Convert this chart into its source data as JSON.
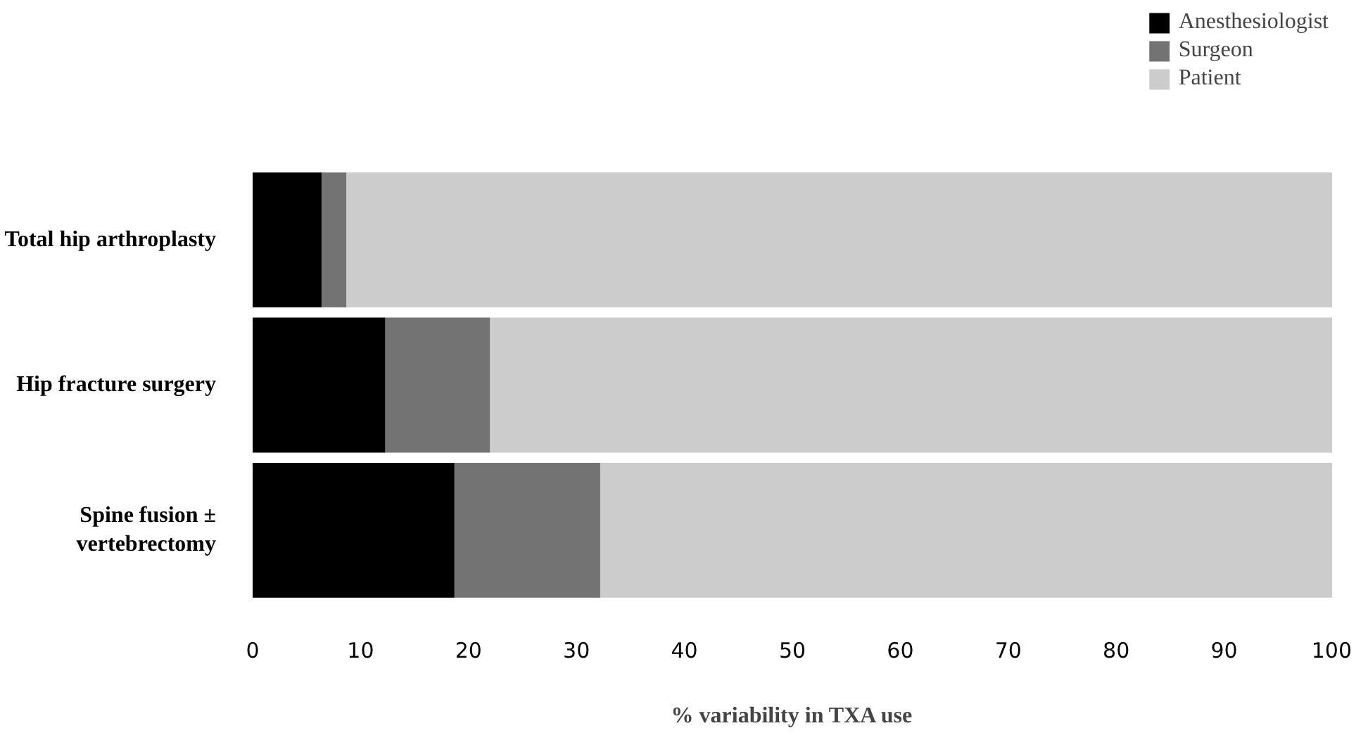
{
  "chart_data": {
    "type": "bar",
    "orientation": "horizontal",
    "stacked": true,
    "xlabel": "% variability in TXA use",
    "categories": [
      "Total hip arthroplasty",
      "Hip fracture surgery",
      "Spine fusion ±\nvertebrectomy"
    ],
    "series": [
      {
        "name": "Anesthesiologist",
        "color": "#000000",
        "values": [
          6.4,
          12.3,
          18.7
        ]
      },
      {
        "name": "Surgeon",
        "color": "#737373",
        "values": [
          2.3,
          9.7,
          13.5
        ]
      },
      {
        "name": "Patient",
        "color": "#cccccc",
        "values": [
          91.3,
          78.0,
          67.8
        ]
      }
    ],
    "xlim": [
      0,
      100
    ],
    "xticks": [
      0,
      10,
      20,
      30,
      40,
      50,
      60,
      70,
      80,
      90,
      100
    ],
    "grid": false,
    "legend": "top right"
  }
}
